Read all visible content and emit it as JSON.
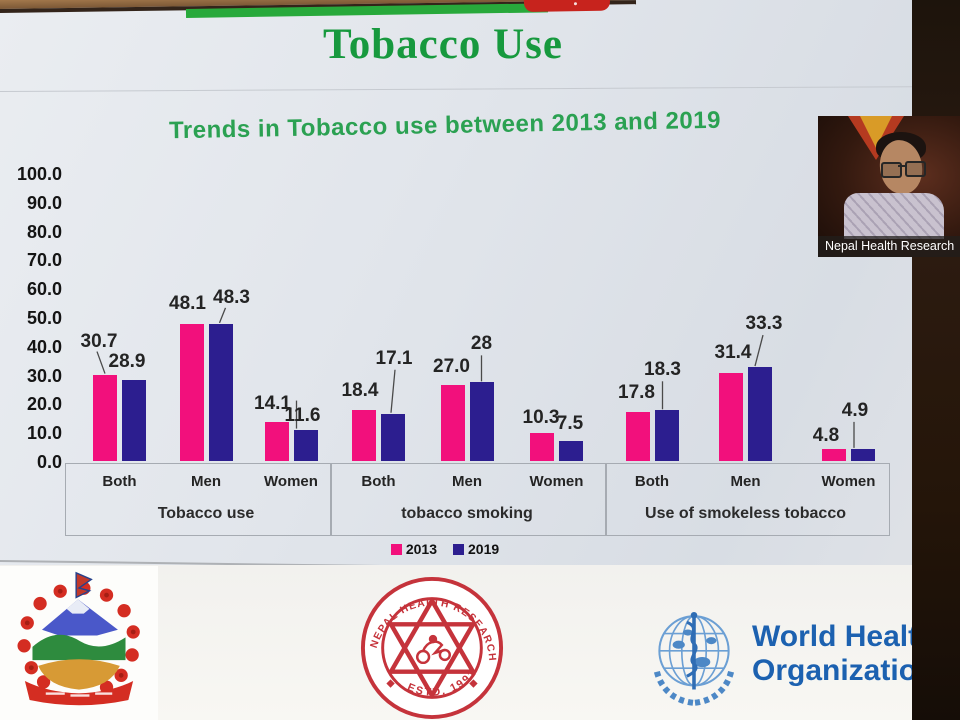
{
  "slide": {
    "title": "Tobacco Use",
    "subtitle": "Trends in Tobacco use between 2013 and 2019",
    "who_logo_text_line1": "World Health",
    "who_logo_text_line2": "Organization",
    "nhrc_seal_text_top": "NEPAL HEALTH RESEARCH COUNCIL",
    "nhrc_seal_text_bottom": "ESTD. 1991"
  },
  "meeting": {
    "video_tile": {
      "participant_label": "Nepal Health Research"
    }
  },
  "chart_data": {
    "type": "bar",
    "title": "Trends in Tobacco use between 2013 and 2019",
    "ylim": [
      0,
      100
    ],
    "ytick_labels": [
      "100.0",
      "90.0",
      "80.0",
      "70.0",
      "60.0",
      "50.0",
      "40.0",
      "30.0",
      "20.0",
      "10.0",
      "0.0"
    ],
    "grid": false,
    "legend_position": "bottom",
    "groups": [
      {
        "label": "Tobacco use",
        "categories": [
          "Both",
          "Men",
          "Women"
        ]
      },
      {
        "label": "tobacco smoking",
        "categories": [
          "Both",
          "Men",
          "Women"
        ]
      },
      {
        "label": "Use of smokeless tobacco",
        "categories": [
          "Both",
          "Men",
          "Women"
        ]
      }
    ],
    "series": [
      {
        "name": "2013",
        "color": "#f2107c",
        "values": [
          [
            30.7,
            48.1,
            14.1
          ],
          [
            18.4,
            27.0,
            10.3
          ],
          [
            17.8,
            31.4,
            4.8
          ]
        ],
        "labels": [
          [
            "30.7",
            "48.1",
            "14.1"
          ],
          [
            "18.4",
            "27.0",
            "10.3"
          ],
          [
            "17.8",
            "31.4",
            "4.8"
          ]
        ]
      },
      {
        "name": "2019",
        "color": "#2c1e8f",
        "values": [
          [
            28.9,
            48.3,
            11.6
          ],
          [
            17.1,
            28,
            7.5
          ],
          [
            18.3,
            33.3,
            4.9
          ]
        ],
        "labels": [
          [
            "28.9",
            "48.3",
            "11.6"
          ],
          [
            "17.1",
            "28",
            "7.5"
          ],
          [
            "18.3",
            "33.3",
            "4.9"
          ]
        ]
      }
    ]
  },
  "colors": {
    "series_2013_pink": "#f2107c",
    "series_2019_blue": "#2c1e8f",
    "title_green": "#17993e",
    "subtitle_green": "#2ba152",
    "who_blue": "#1c61b0",
    "nhrc_seal_red": "#c5333b",
    "nepal_emblem_red": "#d42d22"
  }
}
